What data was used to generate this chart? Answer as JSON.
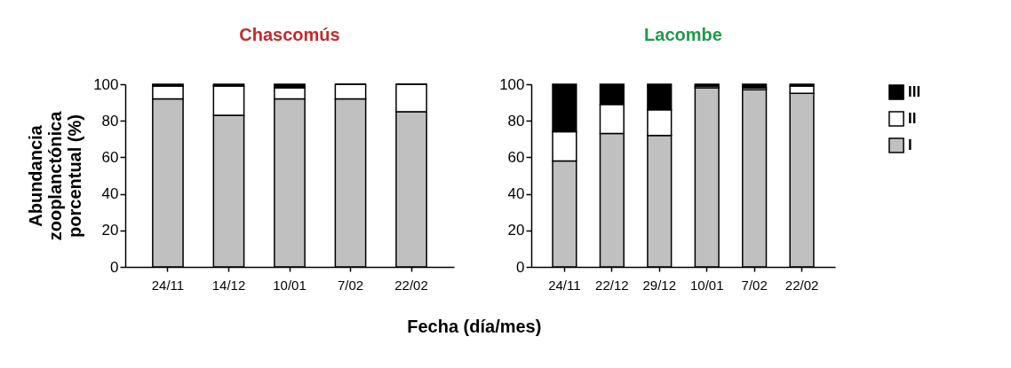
{
  "chart_data": [
    {
      "type": "bar",
      "title": "Chascomús",
      "ylabel": "Abundancia zooplanctónica porcentual (%)",
      "xlabel": "Fecha (día/mes)",
      "categories": [
        "24/11",
        "14/12",
        "10/01",
        "7/02",
        "22/02"
      ],
      "stacked": true,
      "ylim": [
        0,
        100
      ],
      "yticks": [
        0,
        20,
        40,
        60,
        80,
        100
      ],
      "legend": false,
      "series": [
        {
          "color": "#c0c0c0",
          "values": [
            92,
            83,
            92,
            92,
            85
          ]
        },
        {
          "color": "#ffffff",
          "values": [
            7,
            16,
            6,
            8,
            15
          ]
        },
        {
          "color": "#000000",
          "values": [
            1,
            1,
            2,
            0,
            0
          ]
        }
      ]
    },
    {
      "type": "bar",
      "title": "Lacombe",
      "categories": [
        "24/11",
        "22/12",
        "29/12",
        "10/01",
        "7/02",
        "22/02"
      ],
      "stacked": true,
      "ylim": [
        0,
        100
      ],
      "yticks": [
        0,
        20,
        40,
        60,
        80,
        100
      ],
      "legend": "right",
      "series": [
        {
          "name": "I",
          "color": "#c0c0c0",
          "values": [
            58,
            73,
            72,
            98,
            97,
            95
          ]
        },
        {
          "name": "II",
          "color": "#ffffff",
          "values": [
            16,
            16,
            14,
            1,
            1,
            4
          ]
        },
        {
          "name": "III",
          "color": "#000000",
          "values": [
            26,
            11,
            14,
            1,
            2,
            1
          ]
        }
      ]
    }
  ]
}
